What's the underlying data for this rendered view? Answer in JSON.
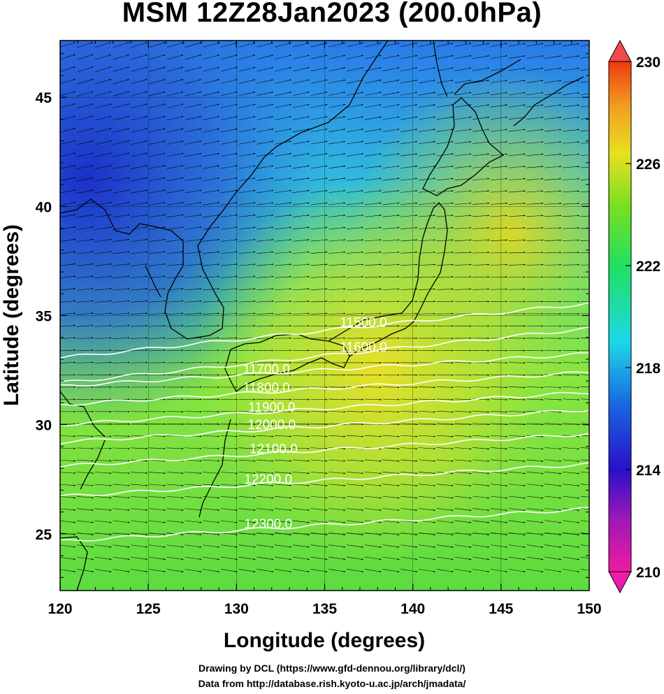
{
  "title": "MSM 12Z28Jan2023 (200.0hPa)",
  "credits": {
    "line1": "Drawing by DCL (https://www.gfd-dennou.org/library/dcl/)",
    "line2": "Data from http://database.rish.kyoto-u.ac.jp/arch/jmadata/"
  },
  "map": {
    "xlabel": "Longitude (degrees)",
    "ylabel": "Latitude  (degrees)",
    "lon_range": [
      120,
      150
    ],
    "lat_range": [
      22.4,
      47.6
    ],
    "x_ticks": [
      "120",
      "125",
      "130",
      "135",
      "140",
      "145",
      "150"
    ],
    "y_ticks": [
      "25",
      "30",
      "35",
      "40",
      "45"
    ],
    "grid": true,
    "shaded_field": "temperature (K)",
    "contour_field": "geopotential height (m)",
    "contours": [
      {
        "label": "11500.0",
        "lon": 137.2,
        "lat": 34.75
      },
      {
        "label": "11600.0",
        "lon": 137.2,
        "lat": 33.6
      },
      {
        "label": "11700.0",
        "lon": 131.7,
        "lat": 32.6
      },
      {
        "label": "11800.0",
        "lon": 131.7,
        "lat": 31.75
      },
      {
        "label": "11900.0",
        "lon": 132.0,
        "lat": 30.85
      },
      {
        "label": "12000.0",
        "lon": 132.0,
        "lat": 30.05
      },
      {
        "label": "12100.0",
        "lon": 132.1,
        "lat": 28.95
      },
      {
        "label": "12200.0",
        "lon": 131.8,
        "lat": 27.55
      },
      {
        "label": "12300.0",
        "lon": 131.8,
        "lat": 25.5
      }
    ],
    "wind_direction": "westerly, curving from west-northwest in the north to west-southwest in the south"
  },
  "colorbar": {
    "ticks": [
      "230",
      "226",
      "222",
      "218",
      "214",
      "210"
    ],
    "range": [
      210,
      230
    ],
    "colors": [
      "#f01aa0",
      "#8a18b8",
      "#2a10c8",
      "#1a6ae0",
      "#1cd8e8",
      "#20e060",
      "#6ce020",
      "#e8e020",
      "#f0a020",
      "#f03a10"
    ]
  }
}
